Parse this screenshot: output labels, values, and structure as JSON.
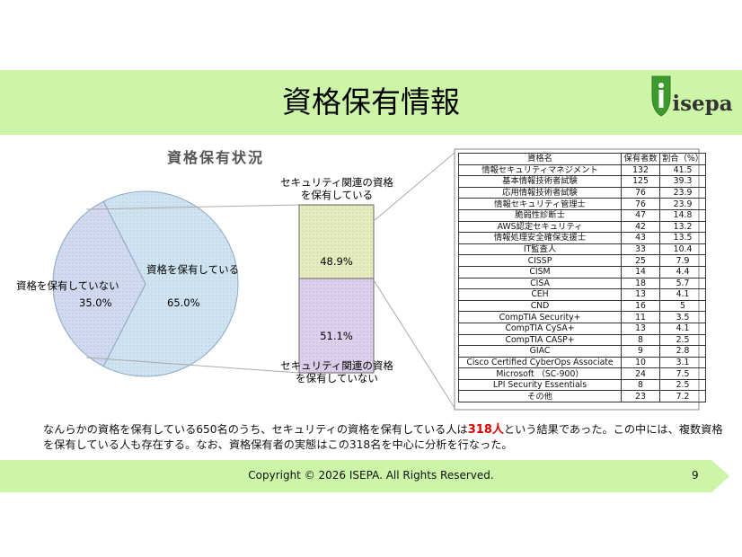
{
  "header": {
    "title": "資格保有情報",
    "logo_text": "isepa"
  },
  "chart_title": "資格保有状況",
  "chart_data": {
    "type": "pie",
    "title": "資格保有状況",
    "categories": [
      "資格を保有している",
      "資格を保有していない"
    ],
    "values": [
      65.0,
      35.0
    ],
    "value_labels": [
      "65.0%",
      "35.0%"
    ]
  },
  "breakdown": {
    "top_label": "セキュリティ関連の資格\nを保有している",
    "top_value": "48.9%",
    "bottom_value": "51.1%",
    "bottom_label": "セキュリティ関連の資格\nを保有していない"
  },
  "table": {
    "headers": [
      "資格名",
      "保有者数",
      "割合（%）"
    ],
    "rows": [
      [
        "情報セキュリティマネジメント",
        "132",
        "41.5"
      ],
      [
        "基本情報技術者試験",
        "125",
        "39.3"
      ],
      [
        "応用情報技術者試験",
        "76",
        "23.9"
      ],
      [
        "情報セキュリティ管理士",
        "76",
        "23.9"
      ],
      [
        "脆弱性診断士",
        "47",
        "14.8"
      ],
      [
        "AWS認定セキュリティ",
        "42",
        "13.2"
      ],
      [
        "情報処理安全確保支援士",
        "43",
        "13.5"
      ],
      [
        "IT監査人",
        "33",
        "10.4"
      ],
      [
        "CISSP",
        "25",
        "7.9"
      ],
      [
        "CISM",
        "14",
        "4.4"
      ],
      [
        "CISA",
        "18",
        "5.7"
      ],
      [
        "CEH",
        "13",
        "4.1"
      ],
      [
        "CND",
        "16",
        "5"
      ],
      [
        "CompTIA Security+",
        "11",
        "3.5"
      ],
      [
        "CompTIA CySA+",
        "13",
        "4.1"
      ],
      [
        "CompTIA CASP+",
        "8",
        "2.5"
      ],
      [
        "GIAC",
        "9",
        "2.8"
      ],
      [
        "Cisco Certified CyberOps Associate",
        "10",
        "3.1"
      ],
      [
        "Microsoft （SC-900）",
        "24",
        "7.5"
      ],
      [
        "LPI Security Essentials",
        "8",
        "2.5"
      ],
      [
        "その他",
        "23",
        "7.2"
      ]
    ]
  },
  "summary": {
    "part1": "なんらかの資格を保有している650名のうち、セキュリティの資格を保有している人は",
    "highlight": "318人",
    "part2": "という結果であった。この中には、複数資格を保有している人も存在する。なお、資格保有者の実態はこの318名を中心に分析を行なった。"
  },
  "footer": {
    "copyright": "Copyright © 2026 ISEPA. All Rights Reserved.",
    "page_number": "9"
  },
  "colors": {
    "title_band": "#ccf5a7",
    "pie_main": "#cfe3f1",
    "pie_slice": "#d3d9ee",
    "bar_top": "#e6ecbf",
    "bar_bottom": "#dcd0ec"
  }
}
